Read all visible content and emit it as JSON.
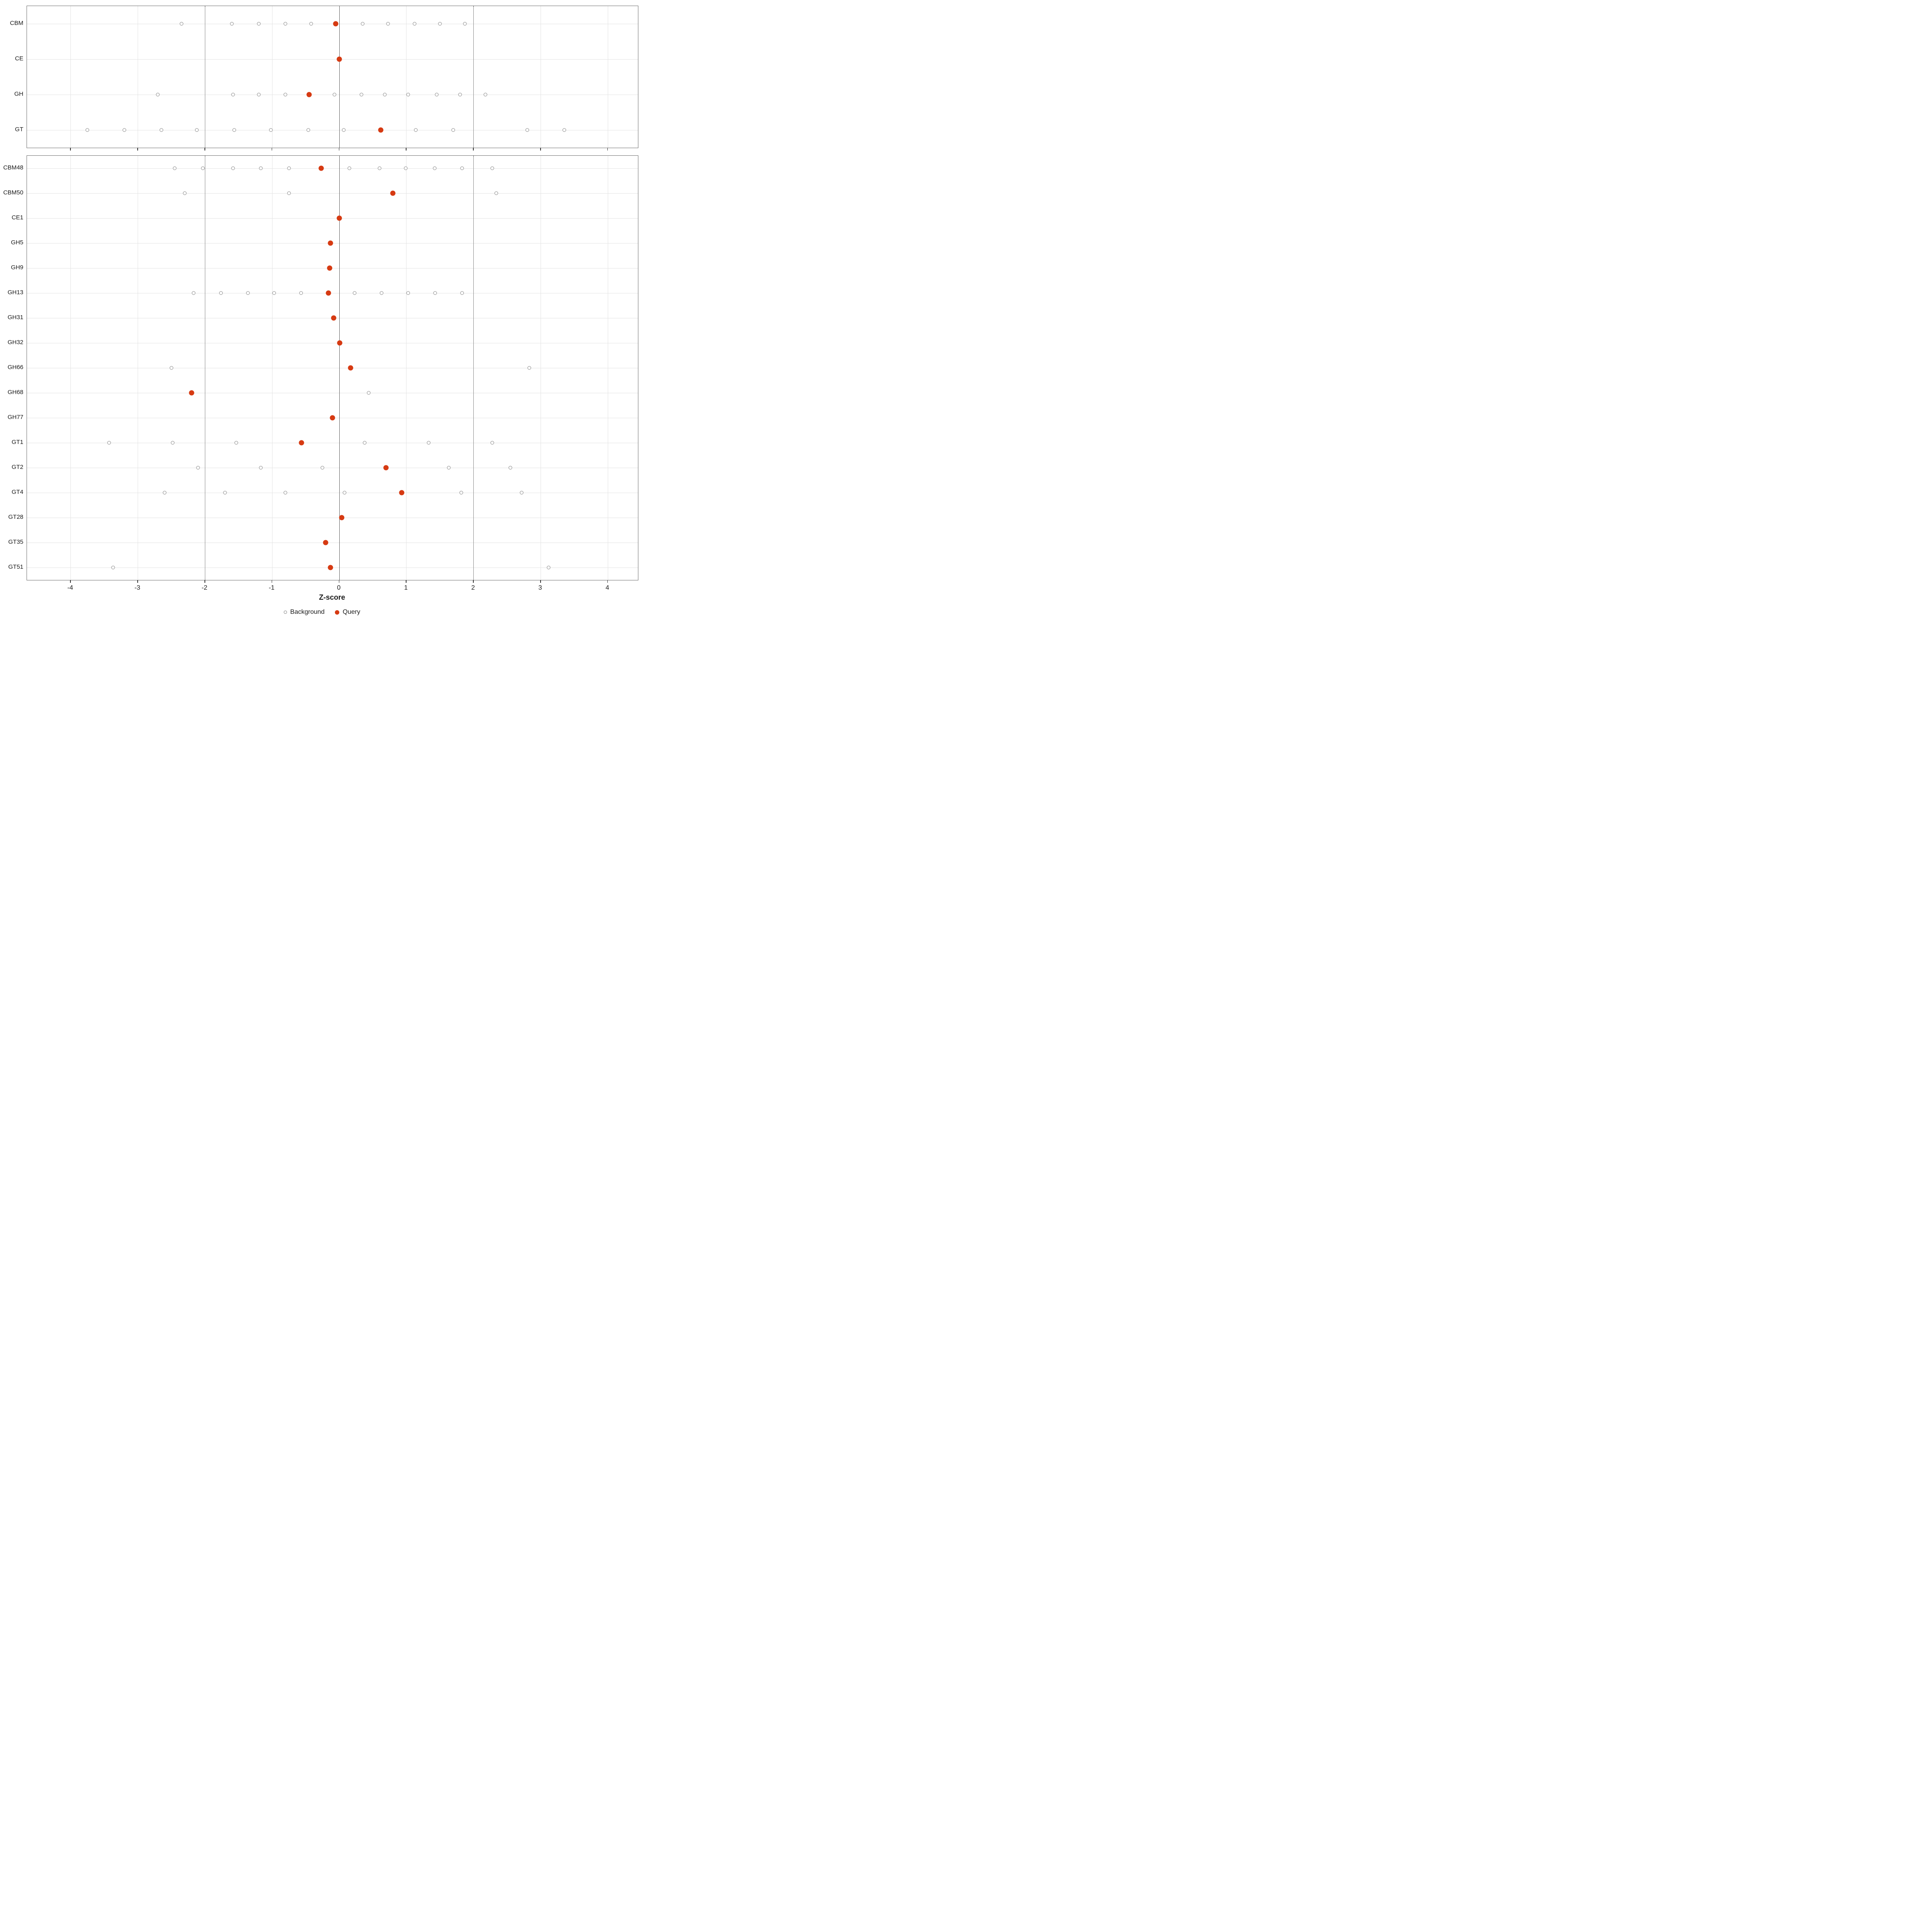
{
  "chart_data": {
    "type": "scatter",
    "orientation": "horizontal-dotplot",
    "title": "",
    "xlabel": "Z-score",
    "ylabel": "",
    "xlim": [
      -4.65,
      4.45
    ],
    "xticks": [
      -4,
      -3,
      -2,
      -1,
      0,
      1,
      2,
      3,
      4
    ],
    "reference_lines": {
      "solid": [
        0
      ],
      "dotted": [
        -2,
        2
      ]
    },
    "grid": true,
    "legend_position": "bottom",
    "legend": [
      {
        "label": "Background",
        "style": "open"
      },
      {
        "label": "Query",
        "style": "filled"
      }
    ],
    "panels": [
      {
        "name": "top",
        "rows": [
          {
            "category": "CBM",
            "background": [
              -2.35,
              -1.6,
              -1.2,
              -0.8,
              -0.42,
              0.35,
              0.73,
              1.12,
              1.5,
              1.87
            ],
            "query": -0.05
          },
          {
            "category": "CE",
            "background": [],
            "query": 0.0
          },
          {
            "category": "GH",
            "background": [
              -2.7,
              -1.58,
              -1.2,
              -0.8,
              -0.07,
              0.33,
              0.68,
              1.03,
              1.45,
              1.8,
              2.18
            ],
            "query": -0.45
          },
          {
            "category": "GT",
            "background": [
              -3.75,
              -3.2,
              -2.65,
              -2.12,
              -1.56,
              -1.02,
              -0.46,
              0.07,
              1.14,
              1.7,
              2.8,
              3.35
            ],
            "query": 0.62
          }
        ]
      },
      {
        "name": "bottom",
        "rows": [
          {
            "category": "CBM48",
            "background": [
              -2.45,
              -2.03,
              -1.58,
              -1.17,
              -0.75,
              0.15,
              0.6,
              0.99,
              1.42,
              1.83,
              2.28
            ],
            "query": -0.27
          },
          {
            "category": "CBM50",
            "background": [
              -2.3,
              -0.75,
              2.34
            ],
            "query": 0.8
          },
          {
            "category": "CE1",
            "background": [],
            "query": 0.0
          },
          {
            "category": "GH5",
            "background": [],
            "query": -0.13
          },
          {
            "category": "GH9",
            "background": [],
            "query": -0.14
          },
          {
            "category": "GH13",
            "background": [
              -2.17,
              -1.76,
              -1.36,
              -0.97,
              -0.57,
              0.23,
              0.63,
              1.03,
              1.43,
              1.83
            ],
            "query": -0.16
          },
          {
            "category": "GH31",
            "background": [],
            "query": -0.08
          },
          {
            "category": "GH32",
            "background": [],
            "query": 0.01
          },
          {
            "category": "GH66",
            "background": [
              -2.5,
              2.83
            ],
            "query": 0.17
          },
          {
            "category": "GH68",
            "background": [
              0.44
            ],
            "query": -2.2
          },
          {
            "category": "GH77",
            "background": [],
            "query": -0.1
          },
          {
            "category": "GT1",
            "background": [
              -3.43,
              -2.48,
              -1.53,
              0.38,
              1.33,
              2.28
            ],
            "query": -0.56
          },
          {
            "category": "GT2",
            "background": [
              -2.1,
              -1.17,
              -0.25,
              1.63,
              2.55
            ],
            "query": 0.7
          },
          {
            "category": "GT4",
            "background": [
              -2.6,
              -1.7,
              -0.8,
              0.08,
              1.82,
              2.72
            ],
            "query": 0.93
          },
          {
            "category": "GT28",
            "background": [],
            "query": 0.04
          },
          {
            "category": "GT35",
            "background": [],
            "query": -0.2
          },
          {
            "category": "GT51",
            "background": [
              -3.37,
              3.12
            ],
            "query": -0.13
          }
        ]
      }
    ]
  },
  "style": {
    "query-color": "#d63a12",
    "background-stroke": "#858585",
    "grid-color": "#e3e3e3",
    "dotted-line-color": "#2b2b2b",
    "zero-line-color": "#5b5b5b",
    "panel-border-color": "#6e6e6e",
    "text-color": "#1a1a1a",
    "axis-tick-color": "#333333"
  }
}
